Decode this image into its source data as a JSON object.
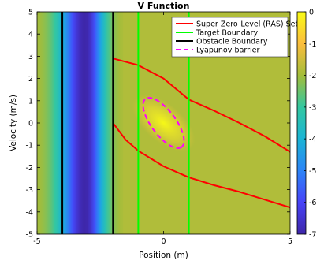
{
  "chart_data": {
    "type": "heatmap",
    "title": "V Function",
    "xlabel": "Position (m)",
    "ylabel": "Velocity (m/s)",
    "xlim": [
      -5,
      5
    ],
    "ylim": [
      -5,
      5
    ],
    "grid": false,
    "x_ticks": [
      -5,
      0,
      5
    ],
    "y_ticks": [
      -5,
      -4,
      -3,
      -2,
      -1,
      0,
      1,
      2,
      3,
      4,
      5
    ],
    "legend_position": "top-right",
    "colorbar": {
      "limits": [
        -7,
        0
      ],
      "ticks": [
        0,
        -1,
        -2,
        -3,
        -4,
        -5,
        -6,
        -7
      ],
      "colormap": [
        "#3e26a8",
        "#4743f8",
        "#2c84f7",
        "#1bb4d5",
        "#33c7a0",
        "#a3bd3a",
        "#fbbd3d",
        "#f9fb15"
      ]
    },
    "background_value": -1.85,
    "field": {
      "obstacle_valley_center_x": -3.1,
      "obstacle_valley_min": -7,
      "bright_spot_center": [
        0,
        0
      ],
      "bright_spot_max": -0.3
    },
    "series": [
      {
        "name": "Super Zero-Level (RAS) Set",
        "color": "#ff0000",
        "curves": [
          {
            "x": [
              -2,
              -1,
              0,
              1,
              2,
              3,
              4,
              5
            ],
            "y": [
              2.9,
              2.6,
              2.0,
              1.05,
              0.55,
              0.0,
              -0.6,
              -1.3
            ]
          },
          {
            "x": [
              -2,
              -1.5,
              -1,
              0,
              1,
              2,
              3,
              4,
              5
            ],
            "y": [
              0.0,
              -0.75,
              -1.25,
              -1.95,
              -2.45,
              -2.8,
              -3.1,
              -3.45,
              -3.8
            ]
          }
        ]
      },
      {
        "name": "Target Boundary",
        "color": "#00ff00",
        "x_lines": [
          -1,
          1
        ]
      },
      {
        "name": "Obstacle Boundary",
        "color": "#000000",
        "x_lines": [
          -4,
          -2
        ]
      },
      {
        "name": "Lyapunov-barrier",
        "color": "#ff00ff",
        "ellipse": {
          "center": [
            0,
            0
          ],
          "a": 1.3,
          "b": 0.5,
          "angle_deg": -58
        }
      }
    ]
  }
}
